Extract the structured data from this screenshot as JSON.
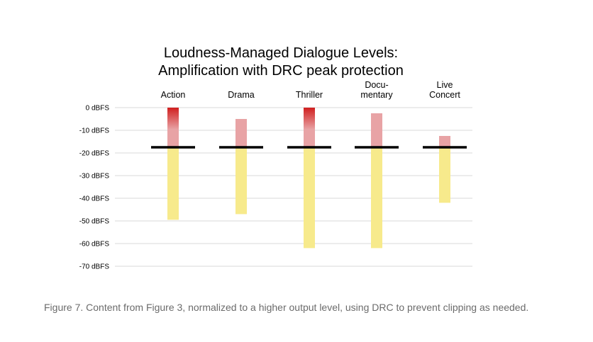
{
  "caption": "Figure 7. Content from Figure 3, normalized to a higher output level, using DRC to prevent clipping as needed.",
  "chart_data": {
    "type": "bar",
    "title": [
      "Loudness-Managed Dialogue Levels:",
      "Amplification with DRC peak protection"
    ],
    "ylim": [
      -70,
      0
    ],
    "yticks": [
      0,
      -10,
      -20,
      -30,
      -40,
      -50,
      -60,
      -70
    ],
    "ytick_labels": [
      "0 dBFS",
      "-10 dBFS",
      "-20 dBFS",
      "-30 dBFS",
      "-40 dBFS",
      "-50 dBFS",
      "-60 dBFS",
      "-70 dBFS"
    ],
    "grid": true,
    "categories": [
      {
        "lines": [
          "Action"
        ]
      },
      {
        "lines": [
          "Drama"
        ]
      },
      {
        "lines": [
          "Thriller"
        ]
      },
      {
        "lines": [
          "Docu-",
          "mentary"
        ]
      },
      {
        "lines": [
          "Live",
          "Concert"
        ]
      }
    ],
    "dialogue_level": -17.5,
    "bars": [
      {
        "low": -49.5,
        "high": 0,
        "peak_clipping": true
      },
      {
        "low": -47,
        "high": -5,
        "peak_clipping": false
      },
      {
        "low": -62,
        "high": 0,
        "peak_clipping": true
      },
      {
        "low": -62,
        "high": -2.5,
        "peak_clipping": false
      },
      {
        "low": -42,
        "high": -12.5,
        "peak_clipping": false
      }
    ],
    "colors": {
      "below_dialogue": "#f7ea8c",
      "above_dialogue": "#e8a3a5",
      "peak_red": "#d01f1f",
      "dialogue_line": "#000000",
      "grid": "#d9d9d9"
    }
  }
}
